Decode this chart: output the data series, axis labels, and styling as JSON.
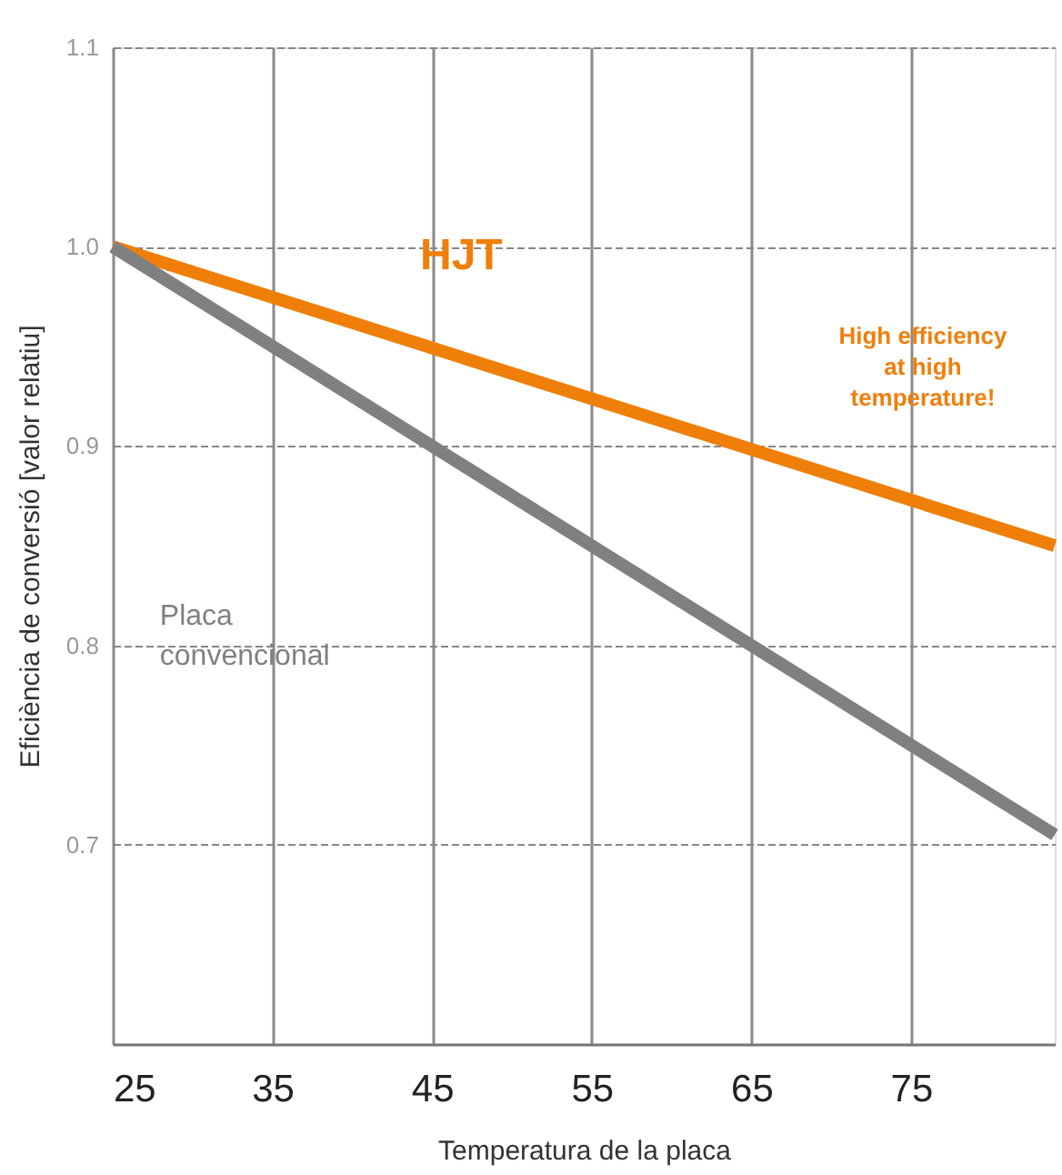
{
  "chart_data": {
    "type": "line",
    "xlabel": "Temperatura de la placa",
    "ylabel": "Eficiència de conversió [valor relatiu]",
    "x": [
      25,
      84
    ],
    "series": [
      {
        "name": "HJT",
        "color": "#f07f0a",
        "values": [
          1.0,
          0.85
        ]
      },
      {
        "name": "Placa convencional",
        "color": "#808080",
        "values": [
          1.0,
          0.705
        ]
      }
    ],
    "xlim": [
      25,
      84
    ],
    "xticks": [
      25,
      35,
      45,
      55,
      65,
      75
    ],
    "ylim": [
      0.6,
      1.1
    ],
    "yticks": [
      0.7,
      0.8,
      0.9,
      {
        "value": 1.0,
        "label": "1.0"
      },
      1.1
    ],
    "grid": true,
    "annotations": [
      "High efficiency at high temperature!"
    ]
  }
}
